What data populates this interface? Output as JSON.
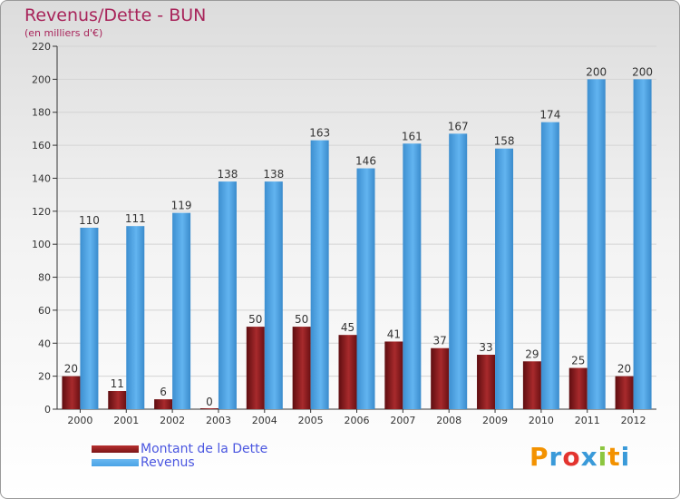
{
  "chart_data": {
    "type": "bar",
    "title": "Revenus/Dette - BUN",
    "subtitle": "(en milliers d'€)",
    "categories": [
      "2000",
      "2001",
      "2002",
      "2003",
      "2004",
      "2005",
      "2006",
      "2007",
      "2008",
      "2009",
      "2010",
      "2011",
      "2012"
    ],
    "series": [
      {
        "name": "Montant de la Dette",
        "color": "#7a1416",
        "values": [
          20,
          11,
          6,
          0,
          50,
          50,
          45,
          41,
          37,
          33,
          29,
          25,
          20
        ]
      },
      {
        "name": "Revenus",
        "color": "#4aa3e6",
        "values": [
          110,
          111,
          119,
          138,
          138,
          163,
          146,
          161,
          167,
          158,
          174,
          200,
          200
        ]
      }
    ],
    "ylim": [
      0,
      220
    ],
    "yticks": [
      0,
      20,
      40,
      60,
      80,
      100,
      120,
      140,
      160,
      180,
      200,
      220
    ],
    "grid": true,
    "legend_position": "bottom-left"
  },
  "logo_text": "Proxiti"
}
